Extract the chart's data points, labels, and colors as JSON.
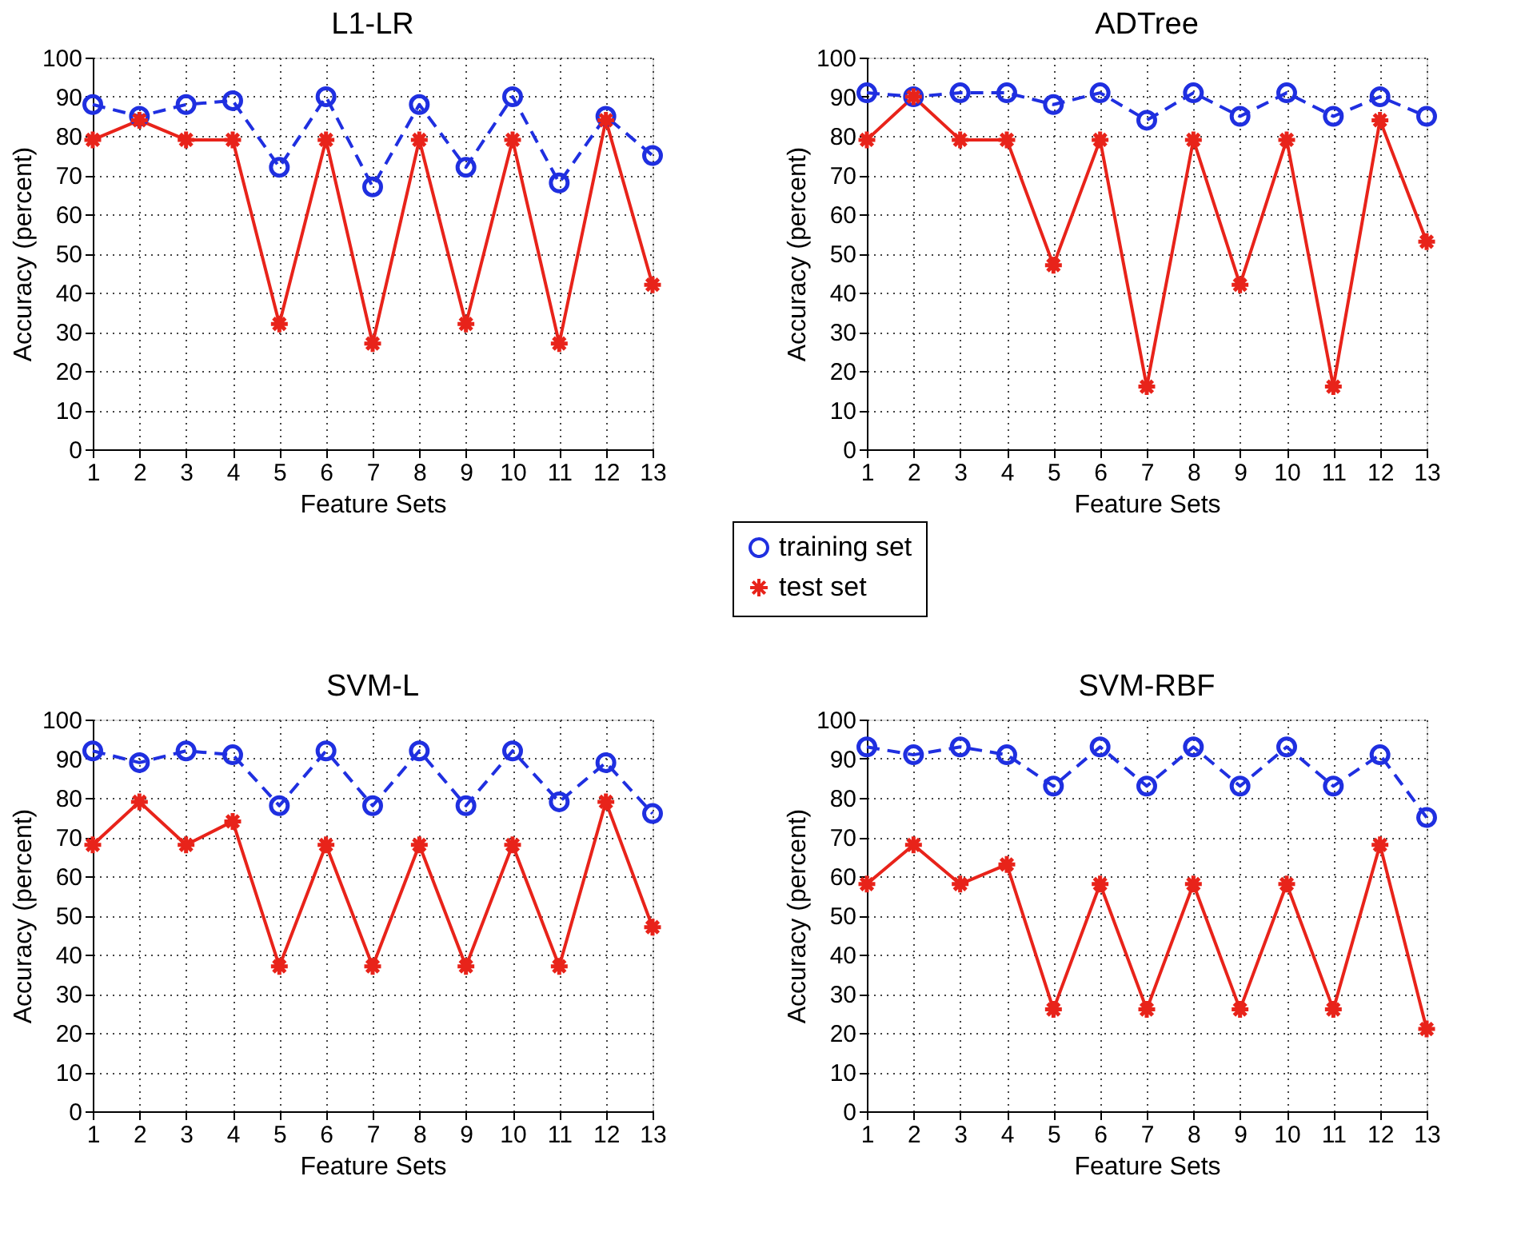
{
  "chart_data": [
    {
      "type": "line",
      "title": "L1-LR",
      "xlabel": "Feature Sets",
      "ylabel": "Accuracy (percent)",
      "x": [
        1,
        2,
        3,
        4,
        5,
        6,
        7,
        8,
        9,
        10,
        11,
        12,
        13
      ],
      "xlim": [
        1,
        13
      ],
      "xticks": [
        1,
        2,
        3,
        4,
        5,
        6,
        7,
        8,
        9,
        10,
        11,
        12,
        13
      ],
      "ylim": [
        0,
        100
      ],
      "yticks": [
        0,
        10,
        20,
        30,
        40,
        50,
        60,
        70,
        80,
        90,
        100
      ],
      "grid": true,
      "legend": "bottom right",
      "series": [
        {
          "name": "training set",
          "color": "#1f2fe0",
          "marker": "circle",
          "line_style": "dashed",
          "values": [
            88,
            85,
            88,
            89,
            72,
            90,
            67,
            88,
            72,
            90,
            68,
            85,
            75
          ]
        },
        {
          "name": "test set",
          "color": "#e8231a",
          "marker": "cross",
          "line_style": "solid",
          "values": [
            79,
            84,
            79,
            79,
            32,
            79,
            27,
            79,
            32,
            79,
            27,
            84,
            42
          ]
        }
      ]
    },
    {
      "type": "line",
      "title": "ADTree",
      "xlabel": "Feature Sets",
      "ylabel": "Accuracy (percent)",
      "x": [
        1,
        2,
        3,
        4,
        5,
        6,
        7,
        8,
        9,
        10,
        11,
        12,
        13
      ],
      "xlim": [
        1,
        13
      ],
      "xticks": [
        1,
        2,
        3,
        4,
        5,
        6,
        7,
        8,
        9,
        10,
        11,
        12,
        13
      ],
      "ylim": [
        0,
        100
      ],
      "yticks": [
        0,
        10,
        20,
        30,
        40,
        50,
        60,
        70,
        80,
        90,
        100
      ],
      "grid": true,
      "series": [
        {
          "name": "training set",
          "color": "#1f2fe0",
          "marker": "circle",
          "line_style": "dashed",
          "values": [
            91,
            90,
            91,
            91,
            88,
            91,
            84,
            91,
            85,
            91,
            85,
            90,
            85
          ]
        },
        {
          "name": "test set",
          "color": "#e8231a",
          "marker": "cross",
          "line_style": "solid",
          "values": [
            79,
            90,
            79,
            79,
            47,
            79,
            16,
            79,
            42,
            79,
            16,
            84,
            53
          ]
        }
      ]
    },
    {
      "type": "line",
      "title": "SVM-L",
      "xlabel": "Feature Sets",
      "ylabel": "Accuracy (percent)",
      "x": [
        1,
        2,
        3,
        4,
        5,
        6,
        7,
        8,
        9,
        10,
        11,
        12,
        13
      ],
      "xlim": [
        1,
        13
      ],
      "xticks": [
        1,
        2,
        3,
        4,
        5,
        6,
        7,
        8,
        9,
        10,
        11,
        12,
        13
      ],
      "ylim": [
        0,
        100
      ],
      "yticks": [
        0,
        10,
        20,
        30,
        40,
        50,
        60,
        70,
        80,
        90,
        100
      ],
      "grid": true,
      "series": [
        {
          "name": "training set",
          "color": "#1f2fe0",
          "marker": "circle",
          "line_style": "dashed",
          "values": [
            92,
            89,
            92,
            91,
            78,
            92,
            78,
            92,
            78,
            92,
            79,
            89,
            76
          ]
        },
        {
          "name": "test set",
          "color": "#e8231a",
          "marker": "cross",
          "line_style": "solid",
          "values": [
            68,
            79,
            68,
            74,
            37,
            68,
            37,
            68,
            37,
            68,
            37,
            79,
            47
          ]
        }
      ]
    },
    {
      "type": "line",
      "title": "SVM-RBF",
      "xlabel": "Feature Sets",
      "ylabel": "Accuracy (percent)",
      "x": [
        1,
        2,
        3,
        4,
        5,
        6,
        7,
        8,
        9,
        10,
        11,
        12,
        13
      ],
      "xlim": [
        1,
        13
      ],
      "xticks": [
        1,
        2,
        3,
        4,
        5,
        6,
        7,
        8,
        9,
        10,
        11,
        12,
        13
      ],
      "ylim": [
        0,
        100
      ],
      "yticks": [
        0,
        10,
        20,
        30,
        40,
        50,
        60,
        70,
        80,
        90,
        100
      ],
      "grid": true,
      "series": [
        {
          "name": "training set",
          "color": "#1f2fe0",
          "marker": "circle",
          "line_style": "dashed",
          "values": [
            93,
            91,
            93,
            91,
            83,
            93,
            83,
            93,
            83,
            93,
            83,
            91,
            75
          ]
        },
        {
          "name": "test set",
          "color": "#e8231a",
          "marker": "cross",
          "line_style": "solid",
          "values": [
            58,
            68,
            58,
            63,
            26,
            58,
            26,
            58,
            26,
            58,
            26,
            68,
            21
          ]
        }
      ]
    }
  ]
}
